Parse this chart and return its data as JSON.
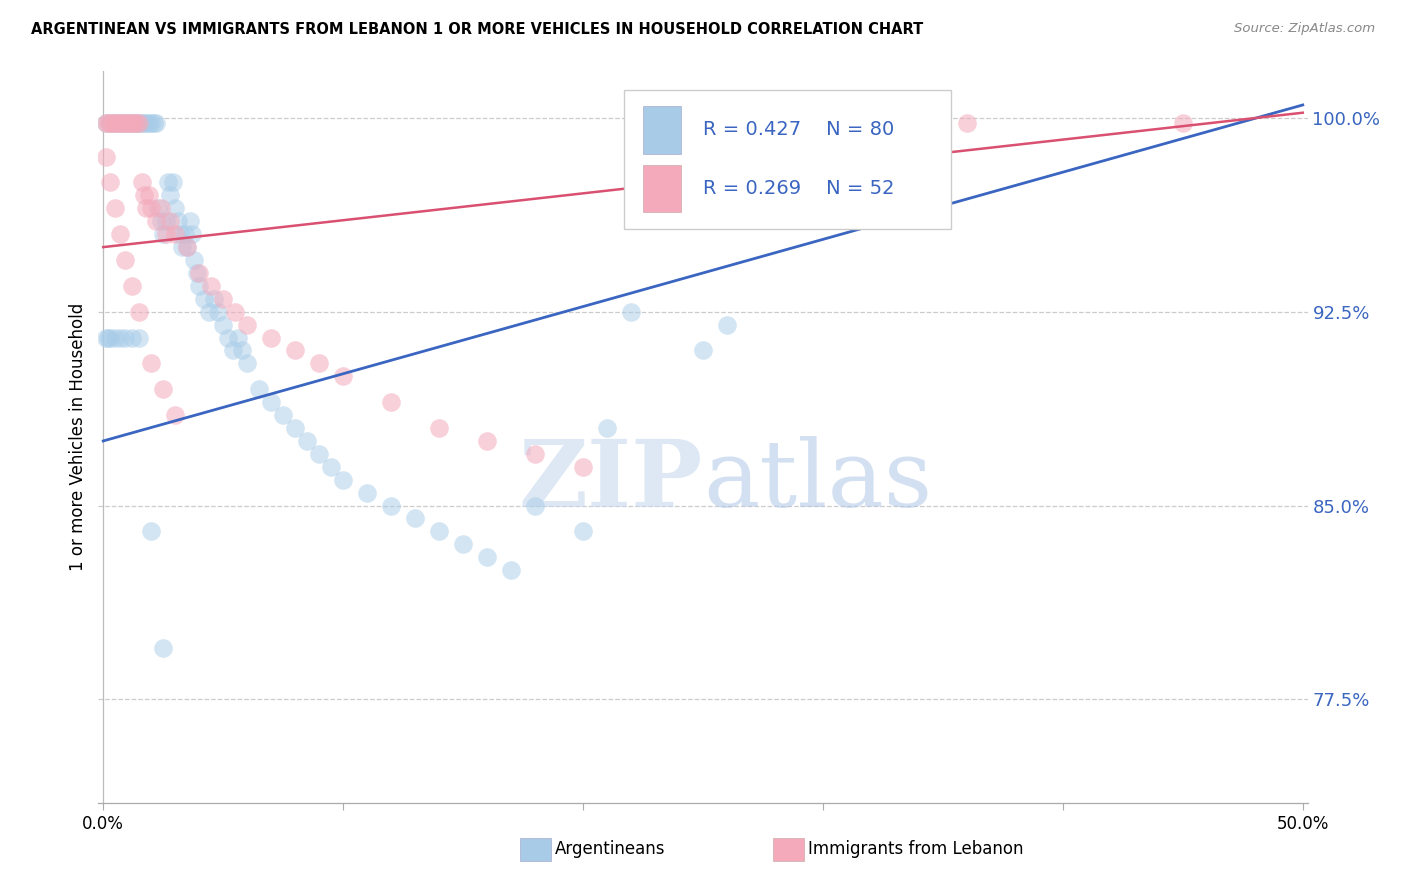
{
  "title": "ARGENTINEAN VS IMMIGRANTS FROM LEBANON 1 OR MORE VEHICLES IN HOUSEHOLD CORRELATION CHART",
  "source": "Source: ZipAtlas.com",
  "ylabel": "1 or more Vehicles in Household",
  "blue_R": 0.427,
  "blue_N": 80,
  "pink_R": 0.269,
  "pink_N": 52,
  "blue_color": "#a8cce8",
  "pink_color": "#f4aabb",
  "blue_line_color": "#3a65c0",
  "pink_line_color": "#d95070",
  "legend_blue_label": "Argentineans",
  "legend_pink_label": "Immigrants from Lebanon",
  "watermark_zip": "ZIP",
  "watermark_atlas": "atlas",
  "xlim": [
    -0.002,
    0.502
  ],
  "ylim": [
    73.5,
    101.8
  ],
  "ytick_vals": [
    77.5,
    85.0,
    92.5,
    100.0
  ],
  "blue_line_x0": 0.0,
  "blue_line_y0": 87.5,
  "blue_line_x1": 0.5,
  "blue_line_y1": 100.5,
  "pink_line_x0": 0.0,
  "pink_line_y0": 95.0,
  "pink_line_x1": 0.5,
  "pink_line_y1": 100.2,
  "blue_x": [
    0.001,
    0.003,
    0.004,
    0.005,
    0.006,
    0.007,
    0.008,
    0.009,
    0.01,
    0.011,
    0.012,
    0.013,
    0.014,
    0.015,
    0.016,
    0.017,
    0.018,
    0.019,
    0.02,
    0.021,
    0.022,
    0.023,
    0.024,
    0.025,
    0.026,
    0.027,
    0.028,
    0.029,
    0.03,
    0.031,
    0.032,
    0.033,
    0.034,
    0.035,
    0.036,
    0.037,
    0.038,
    0.039,
    0.04,
    0.042,
    0.044,
    0.046,
    0.048,
    0.05,
    0.052,
    0.054,
    0.056,
    0.058,
    0.06,
    0.065,
    0.07,
    0.075,
    0.08,
    0.085,
    0.09,
    0.095,
    0.1,
    0.11,
    0.12,
    0.13,
    0.14,
    0.15,
    0.16,
    0.17,
    0.18,
    0.2,
    0.21,
    0.22,
    0.25,
    0.26,
    0.001,
    0.002,
    0.003,
    0.005,
    0.007,
    0.009,
    0.012,
    0.015,
    0.02,
    0.025
  ],
  "blue_y": [
    99.8,
    99.8,
    99.8,
    99.8,
    99.8,
    99.8,
    99.8,
    99.8,
    99.8,
    99.8,
    99.8,
    99.8,
    99.8,
    99.8,
    99.8,
    99.8,
    99.8,
    99.8,
    99.8,
    99.8,
    99.8,
    96.5,
    96.0,
    95.5,
    96.0,
    97.5,
    97.0,
    97.5,
    96.5,
    96.0,
    95.5,
    95.0,
    95.5,
    95.0,
    96.0,
    95.5,
    94.5,
    94.0,
    93.5,
    93.0,
    92.5,
    93.0,
    92.5,
    92.0,
    91.5,
    91.0,
    91.5,
    91.0,
    90.5,
    89.5,
    89.0,
    88.5,
    88.0,
    87.5,
    87.0,
    86.5,
    86.0,
    85.5,
    85.0,
    84.5,
    84.0,
    83.5,
    83.0,
    82.5,
    85.0,
    84.0,
    88.0,
    92.5,
    91.0,
    92.0,
    91.5,
    91.5,
    91.5,
    91.5,
    91.5,
    91.5,
    91.5,
    91.5,
    84.0,
    79.5
  ],
  "pink_x": [
    0.001,
    0.002,
    0.003,
    0.004,
    0.005,
    0.006,
    0.007,
    0.008,
    0.009,
    0.01,
    0.011,
    0.012,
    0.013,
    0.014,
    0.015,
    0.016,
    0.017,
    0.018,
    0.019,
    0.02,
    0.022,
    0.024,
    0.026,
    0.028,
    0.03,
    0.035,
    0.04,
    0.045,
    0.05,
    0.055,
    0.06,
    0.07,
    0.08,
    0.09,
    0.1,
    0.12,
    0.14,
    0.16,
    0.18,
    0.2,
    0.001,
    0.003,
    0.005,
    0.007,
    0.009,
    0.012,
    0.015,
    0.02,
    0.025,
    0.03,
    0.36,
    0.45
  ],
  "pink_y": [
    99.8,
    99.8,
    99.8,
    99.8,
    99.8,
    99.8,
    99.8,
    99.8,
    99.8,
    99.8,
    99.8,
    99.8,
    99.8,
    99.8,
    99.8,
    97.5,
    97.0,
    96.5,
    97.0,
    96.5,
    96.0,
    96.5,
    95.5,
    96.0,
    95.5,
    95.0,
    94.0,
    93.5,
    93.0,
    92.5,
    92.0,
    91.5,
    91.0,
    90.5,
    90.0,
    89.0,
    88.0,
    87.5,
    87.0,
    86.5,
    98.5,
    97.5,
    96.5,
    95.5,
    94.5,
    93.5,
    92.5,
    90.5,
    89.5,
    88.5,
    99.8,
    99.8
  ]
}
